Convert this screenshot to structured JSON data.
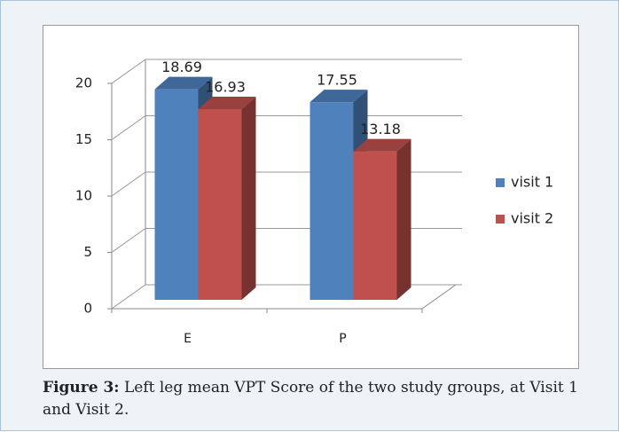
{
  "chart_data": {
    "type": "bar3d",
    "categories": [
      "E",
      "P"
    ],
    "series": [
      {
        "name": "visit 1",
        "color": "#4f81bd",
        "values": [
          18.69,
          17.55
        ]
      },
      {
        "name": "visit 2",
        "color": "#c0504d",
        "values": [
          16.93,
          13.18
        ]
      }
    ],
    "ylim": [
      0,
      20
    ],
    "yticks": [
      0,
      5,
      10,
      15,
      20
    ],
    "grid": true,
    "legend": "right"
  },
  "caption": {
    "label": "Figure 3:",
    "text": "Left leg mean VPT Score of the two study groups, at Visit 1 and Visit 2."
  }
}
